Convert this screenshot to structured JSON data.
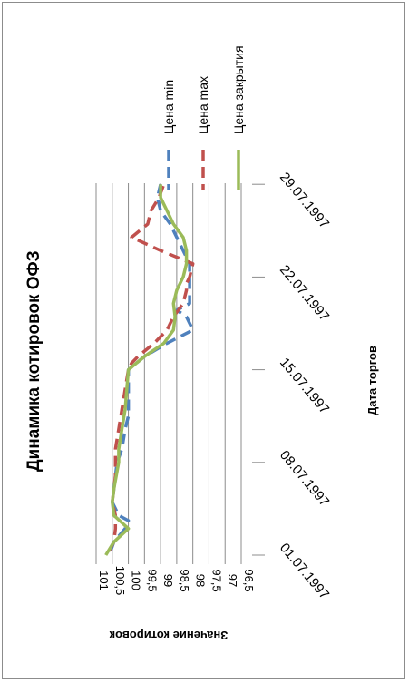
{
  "chart_data": {
    "type": "line",
    "title": "Динамика котировок ОФЗ",
    "xlabel": "Дата торгов",
    "ylabel": "Значение котировок",
    "x_ticks": [
      "01.07.1997",
      "08.07.1997",
      "15.07.1997",
      "22.07.1997",
      "29.07.1997"
    ],
    "x_start": "01.07.1997",
    "y_ticks": [
      "101",
      "100,5",
      "100",
      "99,5",
      "99",
      "98,5",
      "98",
      "97,5",
      "97",
      "96,5"
    ],
    "ylim": [
      96.5,
      101
    ],
    "grid": true,
    "legend_position": "right",
    "series": [
      {
        "name": "Цена min",
        "color": "#4f81bd",
        "dash": "dashed",
        "x": [
          0.3,
          1,
          2,
          2.6,
          3,
          4,
          5,
          7,
          8,
          9.5,
          10.5,
          14,
          15,
          16,
          17,
          18,
          18.5,
          19,
          20,
          21,
          22,
          23,
          24,
          25,
          26,
          27,
          28
        ],
        "y": [
          100.55,
          100.45,
          100.1,
          100.0,
          100.3,
          100.5,
          100.45,
          100.35,
          100.2,
          100.1,
          100.0,
          100.0,
          99.5,
          98.8,
          98.0,
          98.2,
          98.5,
          98.1,
          98.1,
          98.1,
          98.1,
          98.3,
          98.5,
          98.7,
          99.0,
          99.1,
          99.0
        ]
      },
      {
        "name": "Цена max",
        "color": "#c0504d",
        "dash": "dashed",
        "x": [
          0.3,
          1,
          2,
          3,
          4,
          5,
          6,
          7,
          8,
          9.5,
          11,
          14,
          14.5,
          15,
          16,
          17,
          18,
          19,
          20,
          20.5,
          21,
          22,
          23,
          24,
          25,
          26,
          27,
          28
        ],
        "y": [
          100.6,
          100.45,
          100.4,
          100.4,
          100.5,
          100.45,
          100.4,
          100.4,
          100.4,
          100.3,
          100.2,
          100.0,
          99.9,
          99.7,
          99.2,
          98.8,
          98.6,
          98.3,
          98.2,
          98.2,
          98.1,
          98.0,
          99.0,
          99.9,
          99.4,
          99.3,
          99.05,
          98.9
        ]
      },
      {
        "name": "Цена закрытия",
        "color": "#9bbb59",
        "dash": "solid",
        "x": [
          0,
          1,
          2,
          3,
          4,
          5,
          7,
          8,
          9.5,
          11,
          14,
          15,
          16,
          17,
          18,
          19,
          20,
          21,
          22,
          23,
          24,
          25,
          26,
          27,
          28
        ],
        "y": [
          100.7,
          100.45,
          100.0,
          100.45,
          100.5,
          100.45,
          100.3,
          100.3,
          100.2,
          100.1,
          100.0,
          99.5,
          98.9,
          98.6,
          98.55,
          98.6,
          98.5,
          98.3,
          98.2,
          98.2,
          98.3,
          98.6,
          98.8,
          99.0,
          99.0
        ]
      }
    ]
  }
}
